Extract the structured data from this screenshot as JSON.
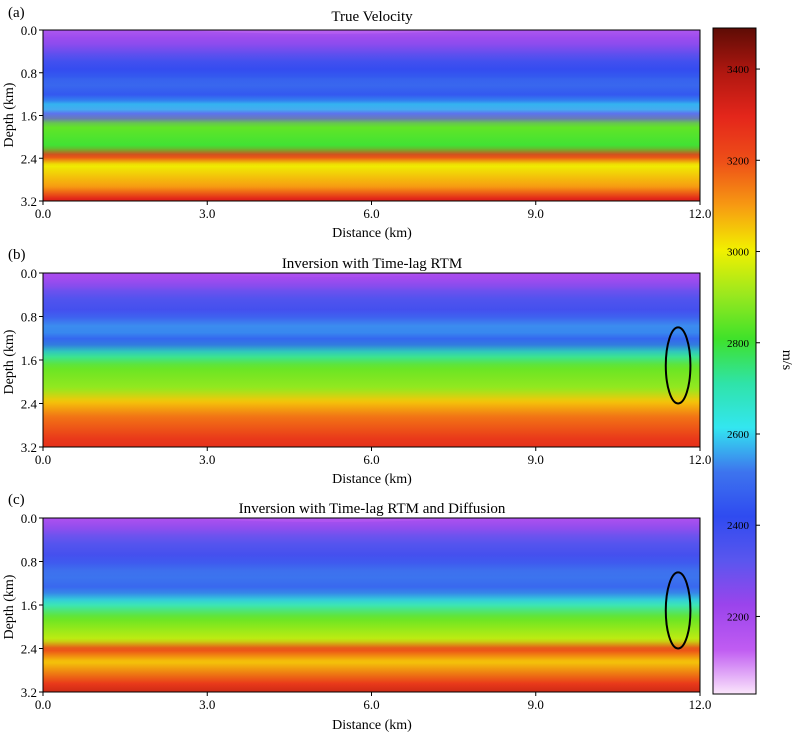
{
  "chart_data": {
    "type": "heatmap",
    "colorbar": {
      "label": "m/s",
      "range": [
        2030,
        3490
      ],
      "ticks": [
        2200,
        2400,
        2600,
        2800,
        3000,
        3200,
        3400
      ],
      "tick_labels": [
        "2200",
        "2400",
        "2600",
        "2800",
        "3000",
        "3200",
        "3400"
      ],
      "colors": [
        "#fbe6fb",
        "#c05cf2",
        "#9b44ec",
        "#5a56ee",
        "#2f4bf0",
        "#3d74ee",
        "#33e6f0",
        "#2fe3a8",
        "#3fe22a",
        "#9be81e",
        "#f2f000",
        "#f79a12",
        "#ee4f18",
        "#e4261b",
        "#b01710",
        "#5e0c05"
      ]
    },
    "panels": [
      {
        "label": "(a)",
        "title": "True Velocity",
        "xlabel": "Distance (km)",
        "ylabel": "Depth (km)",
        "xlim": [
          0,
          12
        ],
        "ylim": [
          3.2,
          0
        ],
        "xticks": [
          "0.0",
          "3.0",
          "6.0",
          "9.0",
          "12.0"
        ],
        "yticks": [
          "0.0",
          "0.8",
          "1.6",
          "2.4",
          "3.2"
        ],
        "velocity_profile": [
          {
            "depth": 0.0,
            "v": 2100
          },
          {
            "depth": 0.3,
            "v": 2190
          },
          {
            "depth": 0.55,
            "v": 2260
          },
          {
            "depth": 0.7,
            "v": 2360
          },
          {
            "depth": 0.95,
            "v": 2420
          },
          {
            "depth": 1.1,
            "v": 2500
          },
          {
            "depth": 1.35,
            "v": 2440
          },
          {
            "depth": 1.5,
            "v": 2600
          },
          {
            "depth": 1.65,
            "v": 2300
          },
          {
            "depth": 1.8,
            "v": 2850
          },
          {
            "depth": 2.15,
            "v": 2800
          },
          {
            "depth": 2.3,
            "v": 3250
          },
          {
            "depth": 2.45,
            "v": 3000
          },
          {
            "depth": 2.8,
            "v": 3100
          },
          {
            "depth": 3.0,
            "v": 3300
          },
          {
            "depth": 3.2,
            "v": 3450
          }
        ],
        "ellipse": null
      },
      {
        "label": "(b)",
        "title": "Inversion with Time-lag RTM",
        "xlabel": "Distance (km)",
        "ylabel": "Depth (km)",
        "xlim": [
          0,
          12
        ],
        "ylim": [
          3.2,
          0
        ],
        "xticks": [
          "0.0",
          "3.0",
          "6.0",
          "9.0",
          "12.0"
        ],
        "yticks": [
          "0.0",
          "0.8",
          "1.6",
          "2.4",
          "3.2"
        ],
        "velocity_profile": [
          {
            "depth": 0.0,
            "v": 2150
          },
          {
            "depth": 0.4,
            "v": 2210
          },
          {
            "depth": 0.6,
            "v": 2330
          },
          {
            "depth": 0.9,
            "v": 2380
          },
          {
            "depth": 1.15,
            "v": 2550
          },
          {
            "depth": 1.35,
            "v": 2450
          },
          {
            "depth": 1.55,
            "v": 2700
          },
          {
            "depth": 1.75,
            "v": 2850
          },
          {
            "depth": 2.1,
            "v": 2900
          },
          {
            "depth": 2.3,
            "v": 3050
          },
          {
            "depth": 2.55,
            "v": 3150
          },
          {
            "depth": 2.9,
            "v": 3250
          },
          {
            "depth": 3.2,
            "v": 3300
          }
        ],
        "ellipse": {
          "x": 11.6,
          "depth": 1.7,
          "rx_km": 0.5,
          "ry_km": 0.7
        }
      },
      {
        "label": "(c)",
        "title": "Inversion with Time-lag RTM and Diffusion",
        "xlabel": "Distance (km)",
        "ylabel": "Depth (km)",
        "xlim": [
          0,
          12
        ],
        "ylim": [
          3.2,
          0
        ],
        "xticks": [
          "0.0",
          "3.0",
          "6.0",
          "9.0",
          "12.0"
        ],
        "yticks": [
          "0.0",
          "0.8",
          "1.6",
          "2.4",
          "3.2"
        ],
        "velocity_profile": [
          {
            "depth": 0.0,
            "v": 2120
          },
          {
            "depth": 0.35,
            "v": 2200
          },
          {
            "depth": 0.6,
            "v": 2320
          },
          {
            "depth": 0.9,
            "v": 2380
          },
          {
            "depth": 1.15,
            "v": 2520
          },
          {
            "depth": 1.4,
            "v": 2480
          },
          {
            "depth": 1.6,
            "v": 2650
          },
          {
            "depth": 1.85,
            "v": 2850
          },
          {
            "depth": 2.2,
            "v": 2950
          },
          {
            "depth": 2.35,
            "v": 3220
          },
          {
            "depth": 2.55,
            "v": 3050
          },
          {
            "depth": 2.9,
            "v": 3250
          },
          {
            "depth": 3.2,
            "v": 3400
          }
        ],
        "ellipse": {
          "x": 11.6,
          "depth": 1.7,
          "rx_km": 0.5,
          "ry_km": 0.7
        }
      }
    ]
  }
}
